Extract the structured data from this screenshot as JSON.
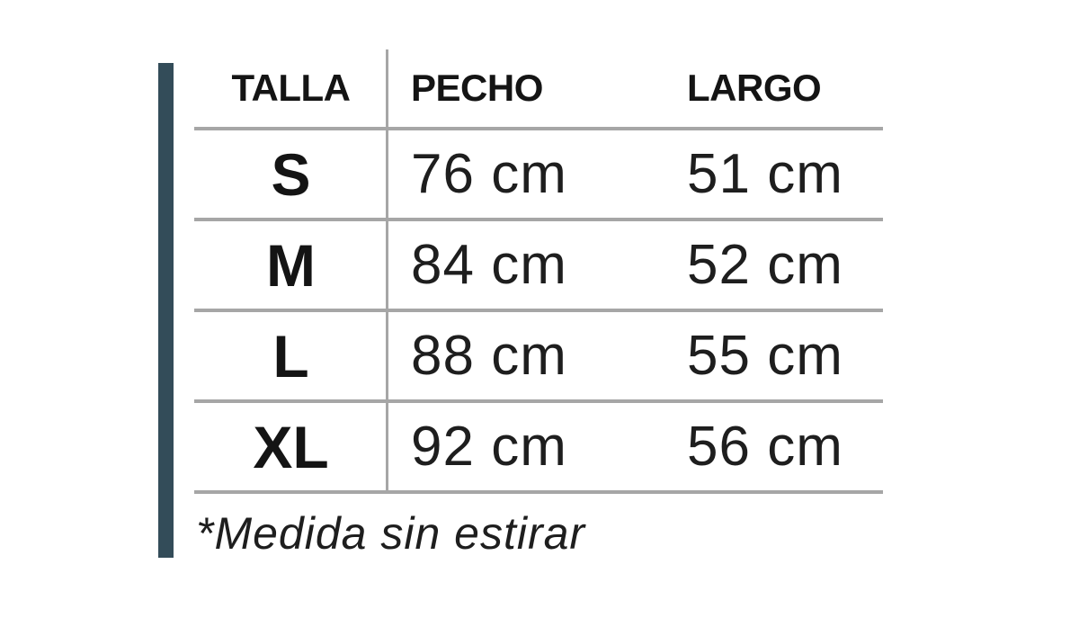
{
  "table": {
    "headers": {
      "size": "TALLA",
      "chest": "PECHO",
      "length": "LARGO"
    },
    "rows": [
      {
        "size": "S",
        "chest": "76 cm",
        "length": "51 cm"
      },
      {
        "size": "M",
        "chest": "84 cm",
        "length": "52 cm"
      },
      {
        "size": "L",
        "chest": "88 cm",
        "length": "55 cm"
      },
      {
        "size": "XL",
        "chest": "92 cm",
        "length": "56 cm"
      }
    ],
    "footnote": "*Medida sin estirar"
  },
  "chart_data": {
    "type": "table",
    "columns": [
      "TALLA",
      "PECHO",
      "LARGO"
    ],
    "rows": [
      [
        "S",
        "76 cm",
        "51 cm"
      ],
      [
        "M",
        "84 cm",
        "52 cm"
      ],
      [
        "L",
        "88 cm",
        "55 cm"
      ],
      [
        "XL",
        "92 cm",
        "56 cm"
      ]
    ],
    "footnote": "*Medida sin estirar",
    "title": ""
  },
  "colors": {
    "accent": "#334c59",
    "grid": "#a6a6a6",
    "ink": "#141414",
    "value-ink": "#1e1e1e"
  }
}
